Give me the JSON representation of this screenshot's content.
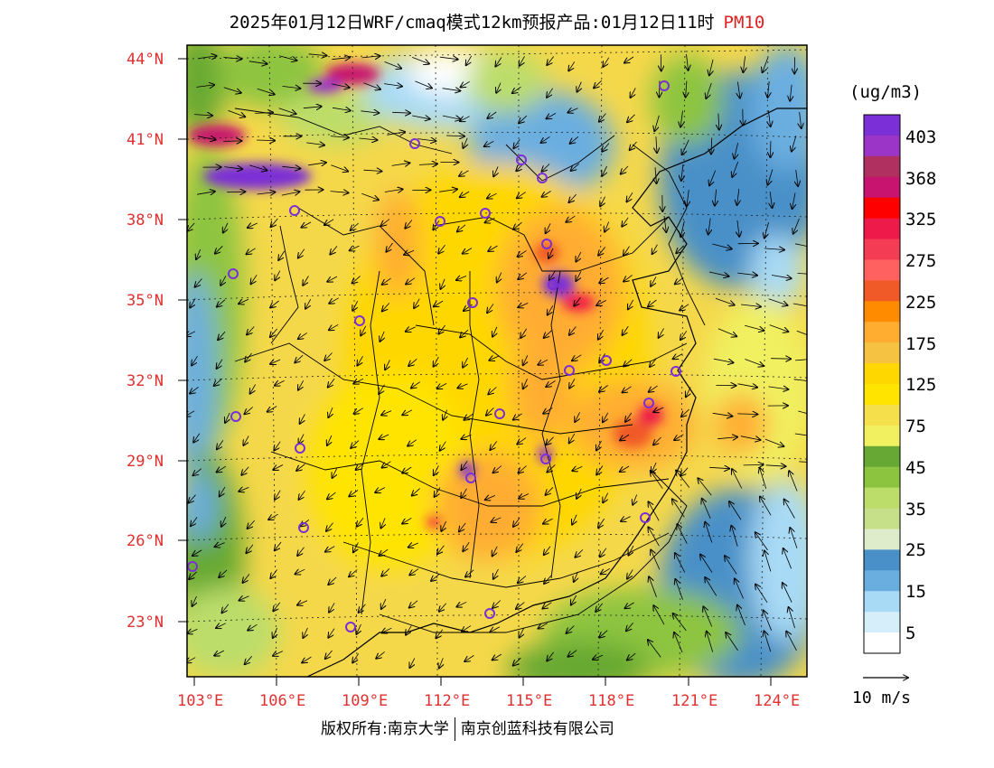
{
  "title": {
    "main": "2025年01月12日WRF/cmaq模式12km预报产品:01月12日11时",
    "species": "PM10"
  },
  "map": {
    "lat_labels": [
      "44°N",
      "41°N",
      "38°N",
      "35°N",
      "32°N",
      "29°N",
      "26°N",
      "23°N"
    ],
    "lon_labels": [
      "103°E",
      "106°E",
      "109°E",
      "112°E",
      "115°E",
      "118°E",
      "121°E",
      "124°E"
    ],
    "extent": {
      "lon_min": 102.7,
      "lon_max": 124.0,
      "lat_min": 21.3,
      "lat_max": 44.6
    }
  },
  "colorbar": {
    "unit": "(ug/m3)",
    "labels": [
      "403",
      "368",
      "325",
      "275",
      "225",
      "175",
      "125",
      "75",
      "45",
      "35",
      "25",
      "15",
      "5"
    ],
    "colors": [
      "#7b2fd6",
      "#9a35c8",
      "#b03060",
      "#c8146e",
      "#ff0000",
      "#ee1a4a",
      "#f43c55",
      "#ff6161",
      "#f05a28",
      "#ff8c00",
      "#ffad30",
      "#f5c242",
      "#ffd700",
      "#ffe400",
      "#f5e04b",
      "#f0f060",
      "#66a833",
      "#8dc43f",
      "#bcdd6a",
      "#c6e08a",
      "#dfeccc",
      "#4a90c8",
      "#6aaee0",
      "#a8daf5",
      "#d5eefa",
      "#ffffff"
    ]
  },
  "vector": {
    "label": "10 m/s"
  },
  "credit": {
    "left": "版权所有:南京大学",
    "right": "南京创蓝科技有限公司"
  }
}
